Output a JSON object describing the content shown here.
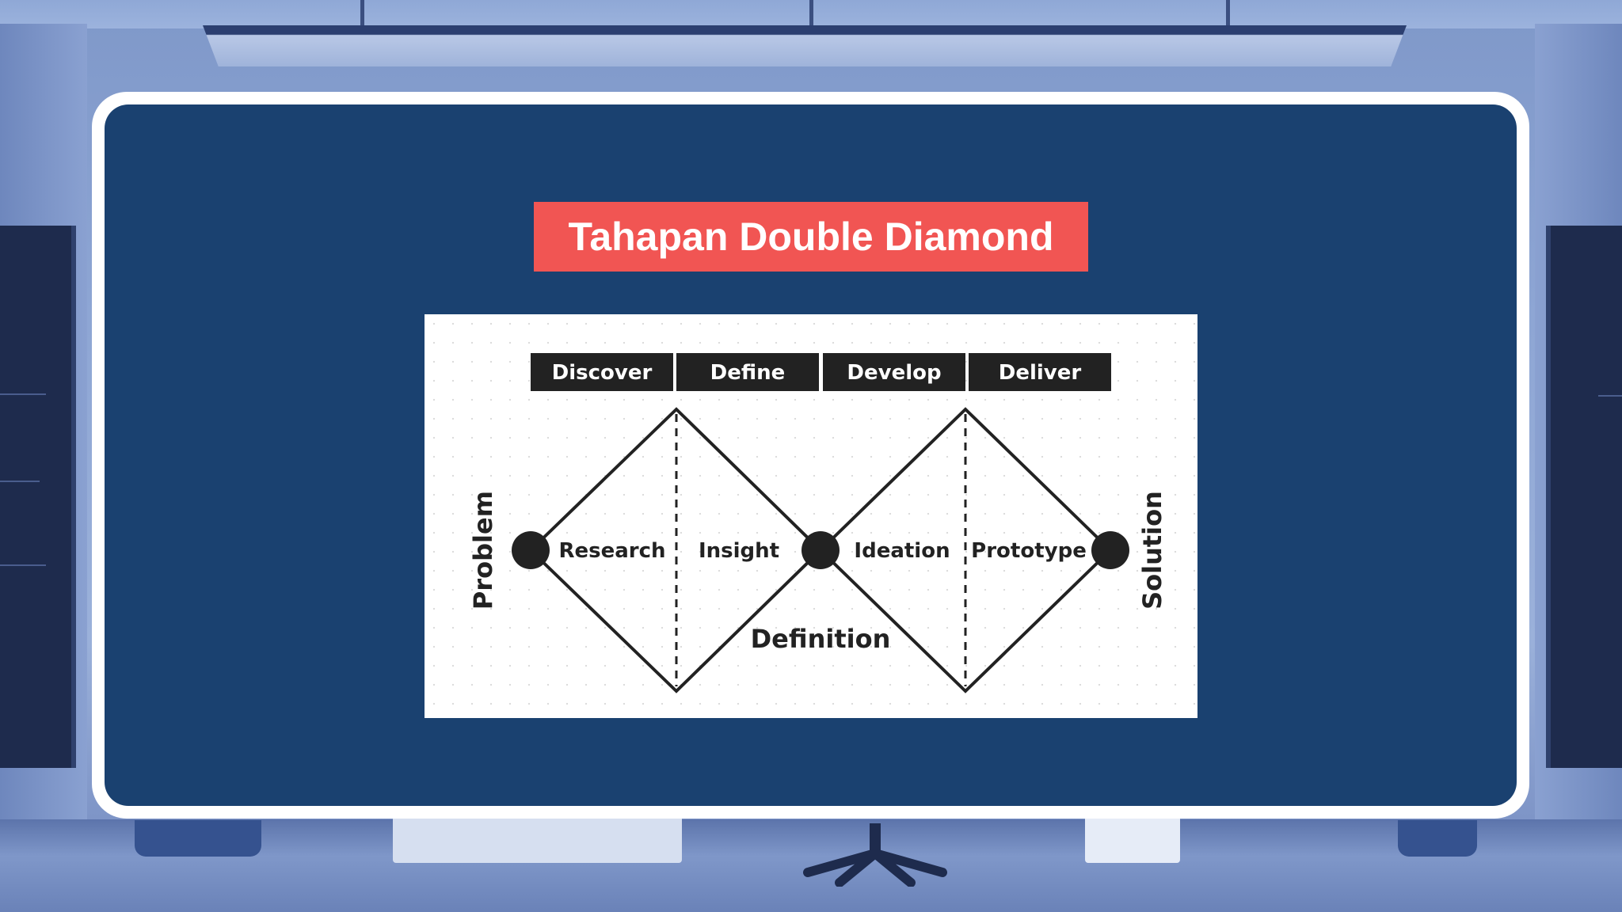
{
  "slide": {
    "title": "Tahapan Double Diamond",
    "colors": {
      "board_background": "#1a4170",
      "board_border": "#ffffff",
      "title_background": "#f15553",
      "title_text": "#ffffff"
    }
  },
  "diagram": {
    "stages": [
      "Discover",
      "Define",
      "Develop",
      "Deliver"
    ],
    "activities": [
      "Research",
      "Insight",
      "Ideation",
      "Prototype"
    ],
    "start_label": "Problem",
    "middle_label": "Definition",
    "end_label": "Solution"
  }
}
